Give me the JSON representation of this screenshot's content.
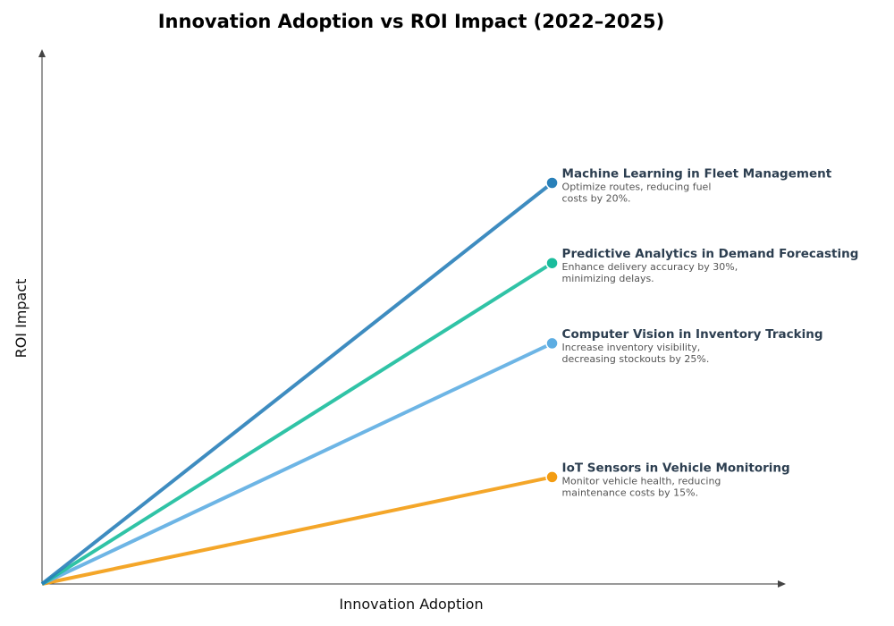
{
  "chart_data": {
    "type": "line",
    "title": "Innovation Adoption vs ROI Impact (2022–2025)",
    "xlabel": "Innovation Adoption",
    "ylabel": "ROI Impact",
    "xlim": [
      0,
      1.46
    ],
    "ylim": [
      0,
      1
    ],
    "grid": false,
    "ticks": false,
    "series": [
      {
        "name": "Machine Learning in Fleet Management",
        "description": [
          "Optimize routes, reducing fuel",
          "costs by 20%."
        ],
        "color": "#2980b9",
        "x": [
          0,
          1
        ],
        "y": [
          0,
          0.75
        ]
      },
      {
        "name": "Predictive Analytics in Demand Forecasting",
        "description": [
          "Enhance delivery accuracy by 30%,",
          "minimizing delays."
        ],
        "color": "#1abc9c",
        "x": [
          0,
          1
        ],
        "y": [
          0,
          0.6
        ]
      },
      {
        "name": "Computer Vision in Inventory Tracking",
        "description": [
          "Increase inventory visibility,",
          "decreasing stockouts by 25%."
        ],
        "color": "#5dade2",
        "x": [
          0,
          1
        ],
        "y": [
          0,
          0.45
        ]
      },
      {
        "name": "IoT Sensors in Vehicle Monitoring",
        "description": [
          "Monitor vehicle health, reducing",
          "maintenance costs by 15%."
        ],
        "color": "#f39c12",
        "x": [
          0,
          1
        ],
        "y": [
          0,
          0.2
        ]
      }
    ]
  }
}
